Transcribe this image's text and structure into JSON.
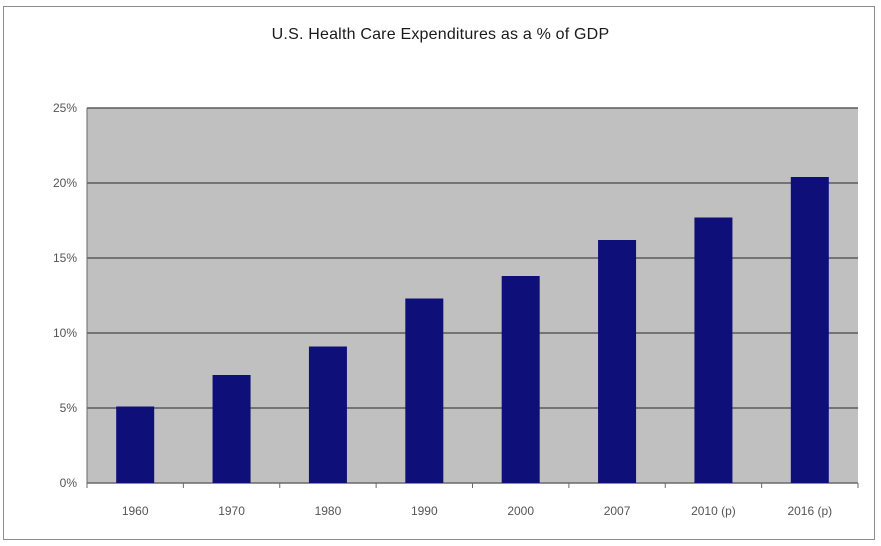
{
  "chart_data": {
    "type": "bar",
    "title": "U.S. Health Care Expenditures as a % of GDP",
    "xlabel": "",
    "ylabel": "",
    "categories": [
      "1960",
      "1970",
      "1980",
      "1990",
      "2000",
      "2007",
      "2010 (p)",
      "2016 (p)"
    ],
    "values": [
      5.1,
      7.2,
      9.1,
      12.3,
      13.8,
      16.2,
      17.7,
      20.4
    ],
    "ylim": [
      0,
      25
    ],
    "y_ticks": [
      0,
      5,
      10,
      15,
      20,
      25
    ],
    "y_tick_labels": [
      "0%",
      "5%",
      "10%",
      "15%",
      "20%",
      "25%"
    ],
    "grid": true,
    "legend": "none",
    "colors": {
      "bar": "#0f0f7a",
      "plot_background": "#c0c0c0",
      "gridline": "#5a5a5a"
    }
  }
}
